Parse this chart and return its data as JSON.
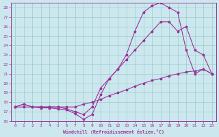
{
  "xlabel": "Windchill (Refroidissement éolien,°C)",
  "xlim": [
    -0.5,
    23.5
  ],
  "ylim": [
    16,
    28.5
  ],
  "ytick_min": 16,
  "ytick_max": 28,
  "xtick_min": 0,
  "xtick_max": 23,
  "bg_color": "#cce8ee",
  "grid_color": "#99cccc",
  "line_color": "#993399",
  "line1_x": [
    0,
    1,
    2,
    3,
    4,
    5,
    6,
    7,
    8,
    9,
    10,
    11,
    12,
    13,
    14,
    15,
    16,
    17,
    18,
    19,
    20,
    21,
    22,
    23
  ],
  "line1_y": [
    17.5,
    17.5,
    17.5,
    17.5,
    17.5,
    17.5,
    17.5,
    17.5,
    17.8,
    18.0,
    18.3,
    18.7,
    19.0,
    19.3,
    19.7,
    20.0,
    20.3,
    20.5,
    20.8,
    21.0,
    21.2,
    21.3,
    21.5,
    21.0
  ],
  "line2_x": [
    0,
    1,
    2,
    3,
    4,
    5,
    6,
    7,
    8,
    9,
    10,
    11,
    12,
    13,
    14,
    15,
    16,
    17,
    18,
    19,
    20,
    21,
    22,
    23
  ],
  "line2_y": [
    17.5,
    17.8,
    17.5,
    17.5,
    17.5,
    17.5,
    17.3,
    17.0,
    16.7,
    17.5,
    19.5,
    20.5,
    21.5,
    22.5,
    23.5,
    24.5,
    25.5,
    26.5,
    26.5,
    25.5,
    26.0,
    23.5,
    23.0,
    21.0
  ],
  "line3_x": [
    0,
    1,
    2,
    3,
    4,
    5,
    6,
    7,
    8,
    9,
    10,
    11,
    12,
    13,
    14,
    15,
    16,
    17,
    18,
    19,
    20,
    21,
    22,
    23
  ],
  "line3_y": [
    17.5,
    17.8,
    17.5,
    17.4,
    17.4,
    17.3,
    17.2,
    16.8,
    16.2,
    16.7,
    18.8,
    20.5,
    21.5,
    23.0,
    25.5,
    27.5,
    28.2,
    28.5,
    28.0,
    27.5,
    23.5,
    21.0,
    21.5,
    21.0
  ]
}
